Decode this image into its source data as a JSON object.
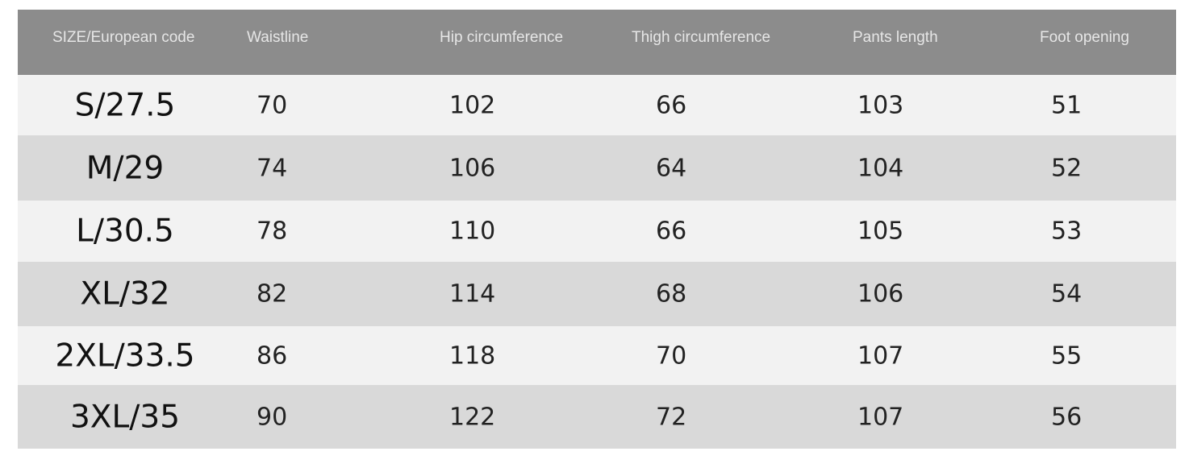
{
  "colors": {
    "header_bg": "#8c8c8c",
    "row_light": "#f2f2f2",
    "row_dark": "#d9d9d9"
  },
  "headers": [
    "SIZE/European code",
    "Waistline",
    "Hip circumference",
    "Thigh circumference",
    "Pants length",
    "Foot opening"
  ],
  "rows": [
    [
      "S/27.5",
      "70",
      "102",
      "66",
      "103",
      "51"
    ],
    [
      "M/29",
      "74",
      "106",
      "64",
      "104",
      "52"
    ],
    [
      "L/30.5",
      "78",
      "110",
      "66",
      "105",
      "53"
    ],
    [
      "XL/32",
      "82",
      "114",
      "68",
      "106",
      "54"
    ],
    [
      "2XL/33.5",
      "86",
      "118",
      "70",
      "107",
      "55"
    ],
    [
      "3XL/35",
      "90",
      "122",
      "72",
      "107",
      "56"
    ]
  ]
}
